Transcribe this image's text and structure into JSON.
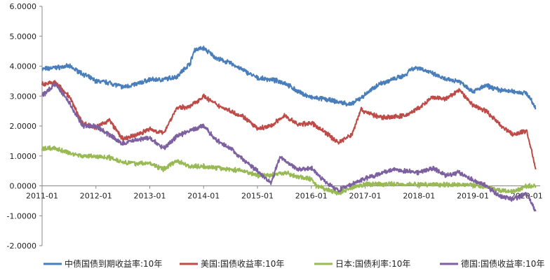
{
  "chart_data": {
    "type": "line",
    "title": "",
    "xlabel": "",
    "ylabel": "",
    "ylim": [
      -2.0,
      6.0
    ],
    "yticks": [
      "-2.0000",
      "-1.0000",
      "0.0000",
      "1.0000",
      "2.0000",
      "3.0000",
      "4.0000",
      "5.0000",
      "6.0000"
    ],
    "xticks": [
      "2011-01",
      "2012-01",
      "2013-01",
      "2014-01",
      "2015-01",
      "2016-01",
      "2017-01",
      "2018-01",
      "2019-01",
      "2020-01"
    ],
    "legend_position": "bottom",
    "grid": false,
    "series": [
      {
        "name": "中债国债到期收益率:10年",
        "color": "#4a7ebb",
        "x": [
          "2011-01",
          "2011-04",
          "2011-07",
          "2011-10",
          "2012-01",
          "2012-04",
          "2012-07",
          "2012-10",
          "2013-01",
          "2013-04",
          "2013-07",
          "2013-10",
          "2013-11",
          "2014-01",
          "2014-04",
          "2014-07",
          "2014-10",
          "2015-01",
          "2015-04",
          "2015-07",
          "2015-10",
          "2016-01",
          "2016-04",
          "2016-07",
          "2016-10",
          "2017-01",
          "2017-04",
          "2017-07",
          "2017-10",
          "2017-11",
          "2018-01",
          "2018-04",
          "2018-07",
          "2018-10",
          "2019-01",
          "2019-04",
          "2019-07",
          "2019-10",
          "2020-01",
          "2020-03"
        ],
        "y": [
          3.9,
          3.95,
          4.0,
          3.75,
          3.5,
          3.45,
          3.3,
          3.4,
          3.55,
          3.55,
          3.65,
          4.1,
          4.55,
          4.6,
          4.25,
          4.1,
          3.85,
          3.6,
          3.55,
          3.45,
          3.15,
          2.95,
          2.9,
          2.8,
          2.72,
          3.05,
          3.4,
          3.55,
          3.7,
          3.9,
          3.95,
          3.75,
          3.55,
          3.5,
          3.15,
          3.35,
          3.2,
          3.15,
          3.1,
          2.6
        ]
      },
      {
        "name": "美国:国债收益率:10年",
        "color": "#be4b48",
        "x": [
          "2011-01",
          "2011-04",
          "2011-07",
          "2011-10",
          "2012-01",
          "2012-04",
          "2012-07",
          "2012-10",
          "2013-01",
          "2013-04",
          "2013-07",
          "2013-10",
          "2014-01",
          "2014-04",
          "2014-07",
          "2014-10",
          "2015-01",
          "2015-04",
          "2015-07",
          "2015-10",
          "2016-01",
          "2016-04",
          "2016-07",
          "2016-10",
          "2016-12",
          "2017-04",
          "2017-07",
          "2017-10",
          "2018-01",
          "2018-04",
          "2018-07",
          "2018-10",
          "2019-01",
          "2019-04",
          "2019-07",
          "2019-10",
          "2020-01",
          "2020-03"
        ],
        "y": [
          3.4,
          3.45,
          3.0,
          2.1,
          1.95,
          2.2,
          1.55,
          1.7,
          1.9,
          1.75,
          2.6,
          2.65,
          3.0,
          2.7,
          2.5,
          2.3,
          1.9,
          2.0,
          2.35,
          2.05,
          2.1,
          1.8,
          1.45,
          1.7,
          2.55,
          2.3,
          2.3,
          2.35,
          2.6,
          2.95,
          2.9,
          3.2,
          2.7,
          2.5,
          2.05,
          1.7,
          1.85,
          0.55
        ]
      },
      {
        "name": "日本:国债利率:10年",
        "color": "#98b954",
        "x": [
          "2011-01",
          "2011-04",
          "2011-07",
          "2011-10",
          "2012-01",
          "2012-04",
          "2012-07",
          "2012-10",
          "2013-01",
          "2013-04",
          "2013-07",
          "2013-10",
          "2014-01",
          "2014-04",
          "2014-07",
          "2014-10",
          "2015-01",
          "2015-04",
          "2015-07",
          "2015-10",
          "2016-01",
          "2016-02",
          "2016-04",
          "2016-07",
          "2016-10",
          "2017-01",
          "2017-07",
          "2018-01",
          "2018-07",
          "2019-01",
          "2019-04",
          "2019-07",
          "2019-10",
          "2020-01",
          "2020-03"
        ],
        "y": [
          1.25,
          1.25,
          1.1,
          1.0,
          0.98,
          0.95,
          0.8,
          0.75,
          0.75,
          0.55,
          0.85,
          0.65,
          0.65,
          0.6,
          0.55,
          0.5,
          0.35,
          0.35,
          0.45,
          0.3,
          0.22,
          0.0,
          -0.1,
          -0.25,
          -0.05,
          0.05,
          0.06,
          0.05,
          0.05,
          0.03,
          -0.05,
          -0.15,
          -0.2,
          -0.01,
          0.0
        ]
      },
      {
        "name": "德国:国债收益率:10年",
        "color": "#7d60a0",
        "x": [
          "2011-01",
          "2011-04",
          "2011-07",
          "2011-10",
          "2012-01",
          "2012-04",
          "2012-07",
          "2012-10",
          "2013-01",
          "2013-04",
          "2013-07",
          "2013-10",
          "2014-01",
          "2014-04",
          "2014-07",
          "2014-10",
          "2015-01",
          "2015-04",
          "2015-06",
          "2015-10",
          "2016-01",
          "2016-04",
          "2016-07",
          "2016-10",
          "2017-01",
          "2017-07",
          "2018-01",
          "2018-04",
          "2018-07",
          "2018-10",
          "2019-01",
          "2019-04",
          "2019-07",
          "2019-10",
          "2020-01",
          "2020-03"
        ],
        "y": [
          3.0,
          3.4,
          2.8,
          2.0,
          2.0,
          1.7,
          1.4,
          1.55,
          1.6,
          1.25,
          1.65,
          1.85,
          2.0,
          1.5,
          1.25,
          0.85,
          0.5,
          0.1,
          0.95,
          0.55,
          0.6,
          0.15,
          -0.15,
          0.05,
          0.25,
          0.55,
          0.45,
          0.6,
          0.35,
          0.45,
          0.2,
          0.0,
          -0.35,
          -0.45,
          -0.25,
          -0.85
        ]
      }
    ]
  }
}
